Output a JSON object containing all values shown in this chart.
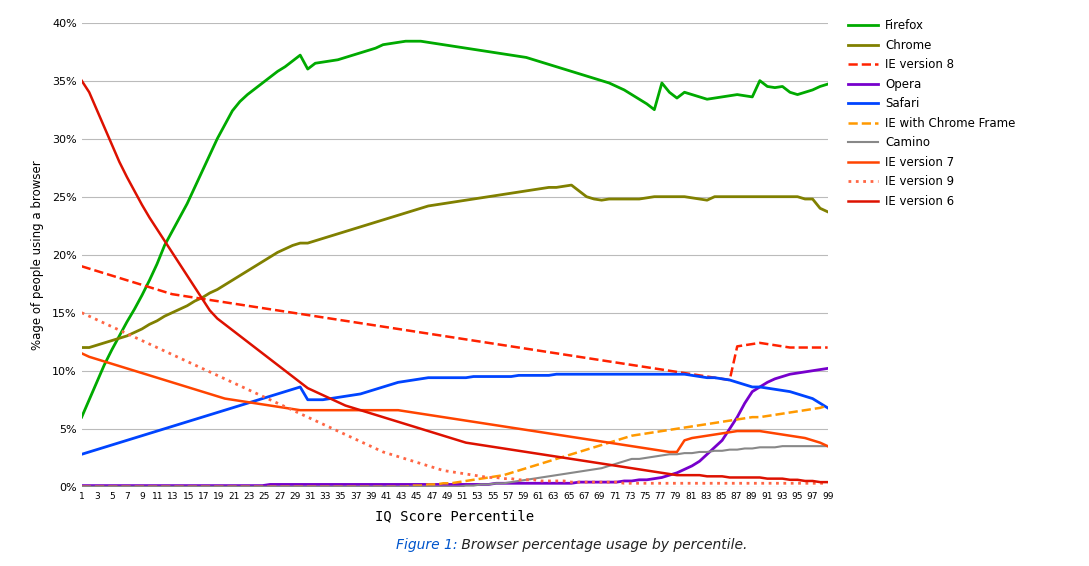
{
  "title_prefix": "Figure 1:",
  "title_suffix": " Browser percentage usage by percentile.",
  "xlabel": "IQ Score Percentile",
  "ylabel": "%age of people using a browser",
  "xlim": [
    1,
    99
  ],
  "ylim": [
    0,
    0.4
  ],
  "yticks": [
    0.0,
    0.05,
    0.1,
    0.15,
    0.2,
    0.25,
    0.3,
    0.35,
    0.4
  ],
  "ytick_labels": [
    "0%",
    "5%",
    "10%",
    "15%",
    "20%",
    "25%",
    "30%",
    "35%",
    "40%"
  ],
  "background": "#ffffff",
  "series": {
    "Firefox": {
      "color": "#00aa00",
      "linestyle": "solid",
      "linewidth": 2.0,
      "values": [
        0.06,
        0.075,
        0.09,
        0.105,
        0.118,
        0.13,
        0.142,
        0.153,
        0.165,
        0.178,
        0.192,
        0.208,
        0.22,
        0.232,
        0.244,
        0.258,
        0.272,
        0.286,
        0.3,
        0.312,
        0.324,
        0.332,
        0.338,
        0.343,
        0.348,
        0.353,
        0.358,
        0.362,
        0.367,
        0.372,
        0.36,
        0.365,
        0.366,
        0.367,
        0.368,
        0.37,
        0.372,
        0.374,
        0.376,
        0.378,
        0.381,
        0.382,
        0.383,
        0.384,
        0.384,
        0.384,
        0.383,
        0.382,
        0.381,
        0.38,
        0.379,
        0.378,
        0.377,
        0.376,
        0.375,
        0.374,
        0.373,
        0.372,
        0.371,
        0.37,
        0.368,
        0.366,
        0.364,
        0.362,
        0.36,
        0.358,
        0.356,
        0.354,
        0.352,
        0.35,
        0.348,
        0.345,
        0.342,
        0.338,
        0.334,
        0.33,
        0.325,
        0.348,
        0.34,
        0.335,
        0.34,
        0.338,
        0.336,
        0.334,
        0.335,
        0.336,
        0.337,
        0.338,
        0.337,
        0.336,
        0.35,
        0.345,
        0.344,
        0.345,
        0.34,
        0.338,
        0.34,
        0.342,
        0.345,
        0.347
      ]
    },
    "Chrome": {
      "color": "#808000",
      "linestyle": "solid",
      "linewidth": 2.0,
      "values": [
        0.12,
        0.12,
        0.122,
        0.124,
        0.126,
        0.128,
        0.13,
        0.133,
        0.136,
        0.14,
        0.143,
        0.147,
        0.15,
        0.153,
        0.156,
        0.16,
        0.163,
        0.167,
        0.17,
        0.174,
        0.178,
        0.182,
        0.186,
        0.19,
        0.194,
        0.198,
        0.202,
        0.205,
        0.208,
        0.21,
        0.21,
        0.212,
        0.214,
        0.216,
        0.218,
        0.22,
        0.222,
        0.224,
        0.226,
        0.228,
        0.23,
        0.232,
        0.234,
        0.236,
        0.238,
        0.24,
        0.242,
        0.243,
        0.244,
        0.245,
        0.246,
        0.247,
        0.248,
        0.249,
        0.25,
        0.251,
        0.252,
        0.253,
        0.254,
        0.255,
        0.256,
        0.257,
        0.258,
        0.258,
        0.259,
        0.26,
        0.255,
        0.25,
        0.248,
        0.247,
        0.248,
        0.248,
        0.248,
        0.248,
        0.248,
        0.249,
        0.25,
        0.25,
        0.25,
        0.25,
        0.25,
        0.249,
        0.248,
        0.247,
        0.25,
        0.25,
        0.25,
        0.25,
        0.25,
        0.25,
        0.25,
        0.25,
        0.25,
        0.25,
        0.25,
        0.25,
        0.248,
        0.248,
        0.24,
        0.237
      ]
    },
    "IE version 8": {
      "color": "#ff2200",
      "linestyle": "dashed",
      "linewidth": 1.8,
      "dash_pattern": [
        8,
        4
      ],
      "values": [
        0.19,
        0.188,
        0.186,
        0.184,
        0.182,
        0.18,
        0.178,
        0.176,
        0.174,
        0.172,
        0.17,
        0.168,
        0.166,
        0.165,
        0.164,
        0.163,
        0.162,
        0.161,
        0.16,
        0.159,
        0.158,
        0.157,
        0.156,
        0.155,
        0.154,
        0.153,
        0.152,
        0.151,
        0.15,
        0.149,
        0.148,
        0.147,
        0.146,
        0.145,
        0.144,
        0.143,
        0.142,
        0.141,
        0.14,
        0.139,
        0.138,
        0.137,
        0.136,
        0.135,
        0.134,
        0.133,
        0.132,
        0.131,
        0.13,
        0.129,
        0.128,
        0.127,
        0.126,
        0.125,
        0.124,
        0.123,
        0.122,
        0.121,
        0.12,
        0.119,
        0.118,
        0.117,
        0.116,
        0.115,
        0.114,
        0.113,
        0.112,
        0.111,
        0.11,
        0.109,
        0.108,
        0.107,
        0.106,
        0.105,
        0.104,
        0.103,
        0.102,
        0.101,
        0.1,
        0.099,
        0.098,
        0.097,
        0.096,
        0.095,
        0.094,
        0.093,
        0.092,
        0.121,
        0.122,
        0.123,
        0.124,
        0.123,
        0.122,
        0.121,
        0.12,
        0.12,
        0.12,
        0.12,
        0.12,
        0.12
      ]
    },
    "Opera": {
      "color": "#7700cc",
      "linestyle": "solid",
      "linewidth": 2.0,
      "values": [
        0.001,
        0.001,
        0.001,
        0.001,
        0.001,
        0.001,
        0.001,
        0.001,
        0.001,
        0.001,
        0.001,
        0.001,
        0.001,
        0.001,
        0.001,
        0.001,
        0.001,
        0.001,
        0.001,
        0.001,
        0.001,
        0.001,
        0.001,
        0.001,
        0.001,
        0.002,
        0.002,
        0.002,
        0.002,
        0.002,
        0.002,
        0.002,
        0.002,
        0.002,
        0.002,
        0.002,
        0.002,
        0.002,
        0.002,
        0.002,
        0.002,
        0.002,
        0.002,
        0.002,
        0.002,
        0.002,
        0.002,
        0.002,
        0.002,
        0.002,
        0.002,
        0.002,
        0.002,
        0.002,
        0.002,
        0.003,
        0.003,
        0.003,
        0.003,
        0.003,
        0.003,
        0.003,
        0.003,
        0.003,
        0.003,
        0.003,
        0.004,
        0.004,
        0.004,
        0.004,
        0.004,
        0.004,
        0.005,
        0.005,
        0.006,
        0.006,
        0.007,
        0.008,
        0.01,
        0.012,
        0.015,
        0.018,
        0.022,
        0.028,
        0.034,
        0.04,
        0.05,
        0.06,
        0.072,
        0.082,
        0.086,
        0.09,
        0.093,
        0.095,
        0.097,
        0.098,
        0.099,
        0.1,
        0.101,
        0.102
      ]
    },
    "Safari": {
      "color": "#0044ff",
      "linestyle": "solid",
      "linewidth": 2.0,
      "values": [
        0.028,
        0.03,
        0.032,
        0.034,
        0.036,
        0.038,
        0.04,
        0.042,
        0.044,
        0.046,
        0.048,
        0.05,
        0.052,
        0.054,
        0.056,
        0.058,
        0.06,
        0.062,
        0.064,
        0.066,
        0.068,
        0.07,
        0.072,
        0.074,
        0.076,
        0.078,
        0.08,
        0.082,
        0.084,
        0.086,
        0.075,
        0.075,
        0.075,
        0.076,
        0.077,
        0.078,
        0.079,
        0.08,
        0.082,
        0.084,
        0.086,
        0.088,
        0.09,
        0.091,
        0.092,
        0.093,
        0.094,
        0.094,
        0.094,
        0.094,
        0.094,
        0.094,
        0.095,
        0.095,
        0.095,
        0.095,
        0.095,
        0.095,
        0.096,
        0.096,
        0.096,
        0.096,
        0.096,
        0.097,
        0.097,
        0.097,
        0.097,
        0.097,
        0.097,
        0.097,
        0.097,
        0.097,
        0.097,
        0.097,
        0.097,
        0.097,
        0.097,
        0.097,
        0.097,
        0.097,
        0.097,
        0.096,
        0.095,
        0.094,
        0.094,
        0.093,
        0.092,
        0.09,
        0.088,
        0.086,
        0.086,
        0.085,
        0.084,
        0.083,
        0.082,
        0.08,
        0.078,
        0.076,
        0.072,
        0.068
      ]
    },
    "IE with Chrome Frame": {
      "color": "#ff9900",
      "linestyle": "dashed",
      "linewidth": 1.8,
      "dash_pattern": [
        8,
        4
      ],
      "values": [
        0.0,
        0.0,
        0.0,
        0.0,
        0.0,
        0.0,
        0.0,
        0.0,
        0.0,
        0.0,
        0.0,
        0.0,
        0.0,
        0.0,
        0.0,
        0.0,
        0.0,
        0.0,
        0.0,
        0.0,
        0.0,
        0.0,
        0.0,
        0.0,
        0.0,
        0.0,
        0.0,
        0.0,
        0.0,
        0.0,
        0.0,
        0.0,
        0.0,
        0.0,
        0.0,
        0.0,
        0.0,
        0.0,
        0.0,
        0.0,
        0.0,
        0.0,
        0.0,
        0.0,
        0.001,
        0.001,
        0.002,
        0.002,
        0.003,
        0.003,
        0.004,
        0.005,
        0.006,
        0.007,
        0.008,
        0.009,
        0.01,
        0.012,
        0.014,
        0.016,
        0.018,
        0.02,
        0.022,
        0.024,
        0.026,
        0.028,
        0.03,
        0.032,
        0.034,
        0.036,
        0.038,
        0.04,
        0.042,
        0.044,
        0.045,
        0.046,
        0.047,
        0.048,
        0.049,
        0.05,
        0.051,
        0.052,
        0.053,
        0.054,
        0.055,
        0.056,
        0.057,
        0.058,
        0.059,
        0.06,
        0.06,
        0.061,
        0.062,
        0.063,
        0.064,
        0.065,
        0.066,
        0.067,
        0.068,
        0.07
      ]
    },
    "Camino": {
      "color": "#888888",
      "linestyle": "solid",
      "linewidth": 1.5,
      "values": [
        0.0,
        0.0,
        0.0,
        0.0,
        0.0,
        0.0,
        0.0,
        0.0,
        0.0,
        0.0,
        0.0,
        0.0,
        0.0,
        0.0,
        0.0,
        0.0,
        0.0,
        0.0,
        0.0,
        0.0,
        0.0,
        0.0,
        0.0,
        0.0,
        0.0,
        0.0,
        0.0,
        0.0,
        0.0,
        0.0,
        0.0,
        0.0,
        0.0,
        0.0,
        0.0,
        0.0,
        0.0,
        0.0,
        0.0,
        0.0,
        0.0,
        0.0,
        0.0,
        0.0,
        0.0,
        0.0,
        0.0,
        0.0,
        0.0,
        0.0,
        0.0,
        0.001,
        0.001,
        0.002,
        0.002,
        0.003,
        0.003,
        0.004,
        0.005,
        0.006,
        0.007,
        0.008,
        0.009,
        0.01,
        0.011,
        0.012,
        0.013,
        0.014,
        0.015,
        0.016,
        0.018,
        0.02,
        0.022,
        0.024,
        0.024,
        0.025,
        0.026,
        0.027,
        0.028,
        0.028,
        0.029,
        0.029,
        0.03,
        0.03,
        0.031,
        0.031,
        0.032,
        0.032,
        0.033,
        0.033,
        0.034,
        0.034,
        0.034,
        0.035,
        0.035,
        0.035,
        0.035,
        0.035,
        0.035,
        0.035
      ]
    },
    "IE version 7": {
      "color": "#ff4400",
      "linestyle": "solid",
      "linewidth": 1.8,
      "values": [
        0.115,
        0.112,
        0.11,
        0.108,
        0.106,
        0.104,
        0.102,
        0.1,
        0.098,
        0.096,
        0.094,
        0.092,
        0.09,
        0.088,
        0.086,
        0.084,
        0.082,
        0.08,
        0.078,
        0.076,
        0.075,
        0.074,
        0.073,
        0.072,
        0.071,
        0.07,
        0.069,
        0.068,
        0.067,
        0.066,
        0.066,
        0.066,
        0.066,
        0.066,
        0.066,
        0.066,
        0.066,
        0.066,
        0.066,
        0.066,
        0.066,
        0.066,
        0.066,
        0.065,
        0.064,
        0.063,
        0.062,
        0.061,
        0.06,
        0.059,
        0.058,
        0.057,
        0.056,
        0.055,
        0.054,
        0.053,
        0.052,
        0.051,
        0.05,
        0.049,
        0.048,
        0.047,
        0.046,
        0.045,
        0.044,
        0.043,
        0.042,
        0.041,
        0.04,
        0.039,
        0.038,
        0.037,
        0.036,
        0.035,
        0.034,
        0.033,
        0.032,
        0.031,
        0.03,
        0.03,
        0.04,
        0.042,
        0.043,
        0.044,
        0.045,
        0.046,
        0.047,
        0.048,
        0.048,
        0.048,
        0.048,
        0.047,
        0.046,
        0.045,
        0.044,
        0.043,
        0.042,
        0.04,
        0.038,
        0.035
      ]
    },
    "IE version 9": {
      "color": "#ff6644",
      "linestyle": "dotted",
      "linewidth": 2.0,
      "values": [
        0.15,
        0.147,
        0.144,
        0.141,
        0.138,
        0.135,
        0.132,
        0.129,
        0.126,
        0.123,
        0.12,
        0.117,
        0.114,
        0.111,
        0.108,
        0.105,
        0.102,
        0.099,
        0.096,
        0.093,
        0.09,
        0.087,
        0.084,
        0.081,
        0.078,
        0.075,
        0.072,
        0.069,
        0.066,
        0.063,
        0.06,
        0.057,
        0.054,
        0.051,
        0.048,
        0.045,
        0.042,
        0.039,
        0.036,
        0.033,
        0.03,
        0.028,
        0.026,
        0.024,
        0.022,
        0.02,
        0.018,
        0.016,
        0.014,
        0.013,
        0.012,
        0.011,
        0.01,
        0.009,
        0.008,
        0.008,
        0.007,
        0.007,
        0.006,
        0.006,
        0.006,
        0.005,
        0.005,
        0.005,
        0.005,
        0.004,
        0.004,
        0.004,
        0.004,
        0.004,
        0.004,
        0.004,
        0.003,
        0.003,
        0.003,
        0.003,
        0.003,
        0.003,
        0.003,
        0.003,
        0.003,
        0.003,
        0.003,
        0.003,
        0.003,
        0.003,
        0.003,
        0.003,
        0.003,
        0.003,
        0.003,
        0.003,
        0.003,
        0.003,
        0.003,
        0.003,
        0.003,
        0.003,
        0.003,
        0.003
      ]
    },
    "IE version 6": {
      "color": "#dd1100",
      "linestyle": "solid",
      "linewidth": 1.8,
      "values": [
        0.35,
        0.34,
        0.325,
        0.31,
        0.295,
        0.28,
        0.267,
        0.255,
        0.243,
        0.232,
        0.222,
        0.212,
        0.202,
        0.192,
        0.182,
        0.172,
        0.162,
        0.152,
        0.145,
        0.14,
        0.135,
        0.13,
        0.125,
        0.12,
        0.115,
        0.11,
        0.105,
        0.1,
        0.095,
        0.09,
        0.085,
        0.082,
        0.079,
        0.076,
        0.073,
        0.07,
        0.068,
        0.066,
        0.064,
        0.062,
        0.06,
        0.058,
        0.056,
        0.054,
        0.052,
        0.05,
        0.048,
        0.046,
        0.044,
        0.042,
        0.04,
        0.038,
        0.037,
        0.036,
        0.035,
        0.034,
        0.033,
        0.032,
        0.031,
        0.03,
        0.029,
        0.028,
        0.027,
        0.026,
        0.025,
        0.024,
        0.023,
        0.022,
        0.021,
        0.02,
        0.019,
        0.018,
        0.017,
        0.016,
        0.015,
        0.014,
        0.013,
        0.012,
        0.011,
        0.01,
        0.01,
        0.01,
        0.01,
        0.009,
        0.009,
        0.009,
        0.008,
        0.008,
        0.008,
        0.008,
        0.008,
        0.007,
        0.007,
        0.007,
        0.006,
        0.006,
        0.005,
        0.005,
        0.004,
        0.004
      ]
    }
  }
}
